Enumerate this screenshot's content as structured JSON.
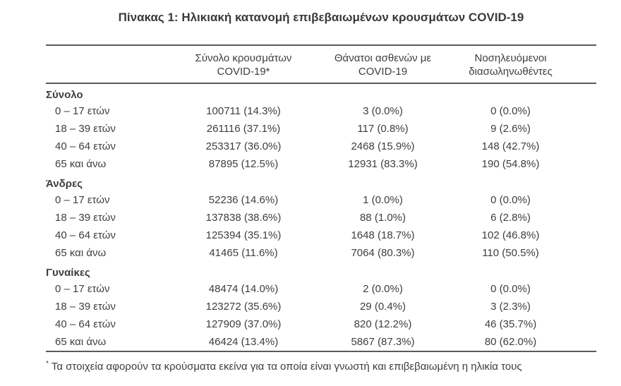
{
  "title": "Πίνακας 1: Ηλικιακή κατανομή επιβεβαιωμένων κρουσμάτων COVID-19",
  "colors": {
    "text": "#3e3e40",
    "rule": "#5a5a5c",
    "background": "#ffffff"
  },
  "table": {
    "header": {
      "col2": {
        "line1": "Σύνολο κρουσμάτων",
        "line2": "COVID-19*"
      },
      "col3": {
        "line1": "Θάνατοι ασθενών με",
        "line2": "COVID-19"
      },
      "col4": {
        "line1": "Νοσηλευόμενοι",
        "line2": "διασωληνωθέντες"
      }
    },
    "sections": [
      {
        "label": "Σύνολο",
        "rows": [
          {
            "age": "0 – 17 ετών",
            "cases": "100711 (14.3%)",
            "deaths": "3 (0.0%)",
            "intubated": "0 (0.0%)"
          },
          {
            "age": "18 – 39 ετών",
            "cases": "261116 (37.1%)",
            "deaths": "117 (0.8%)",
            "intubated": "9 (2.6%)"
          },
          {
            "age": "40 – 64 ετών",
            "cases": "253317 (36.0%)",
            "deaths": "2468 (15.9%)",
            "intubated": "148 (42.7%)"
          },
          {
            "age": "65 και άνω",
            "cases": "87895 (12.5%)",
            "deaths": "12931 (83.3%)",
            "intubated": "190 (54.8%)"
          }
        ]
      },
      {
        "label": "Άνδρες",
        "rows": [
          {
            "age": "0 – 17 ετών",
            "cases": "52236 (14.6%)",
            "deaths": "1 (0.0%)",
            "intubated": "0 (0.0%)"
          },
          {
            "age": "18 – 39 ετών",
            "cases": "137838 (38.6%)",
            "deaths": "88 (1.0%)",
            "intubated": "6 (2.8%)"
          },
          {
            "age": "40 – 64 ετών",
            "cases": "125394 (35.1%)",
            "deaths": "1648 (18.7%)",
            "intubated": "102 (46.8%)"
          },
          {
            "age": "65 και άνω",
            "cases": "41465 (11.6%)",
            "deaths": "7064 (80.3%)",
            "intubated": "110 (50.5%)"
          }
        ]
      },
      {
        "label": "Γυναίκες",
        "rows": [
          {
            "age": "0 – 17 ετών",
            "cases": "48474 (14.0%)",
            "deaths": "2 (0.0%)",
            "intubated": "0 (0.0%)"
          },
          {
            "age": "18 – 39 ετών",
            "cases": "123272 (35.6%)",
            "deaths": "29 (0.4%)",
            "intubated": "3 (2.3%)"
          },
          {
            "age": "40 – 64 ετών",
            "cases": "127909 (37.0%)",
            "deaths": "820 (12.2%)",
            "intubated": "46 (35.7%)"
          },
          {
            "age": "65 και άνω",
            "cases": "46424 (13.4%)",
            "deaths": "5867 (87.3%)",
            "intubated": "80 (62.0%)"
          }
        ]
      }
    ]
  },
  "footnote": {
    "marker": "*",
    "text": "Τα στοιχεία αφορούν τα κρούσματα εκείνα για τα οποία είναι γνωστή και επιβεβαιωμένη η ηλικία τους"
  }
}
